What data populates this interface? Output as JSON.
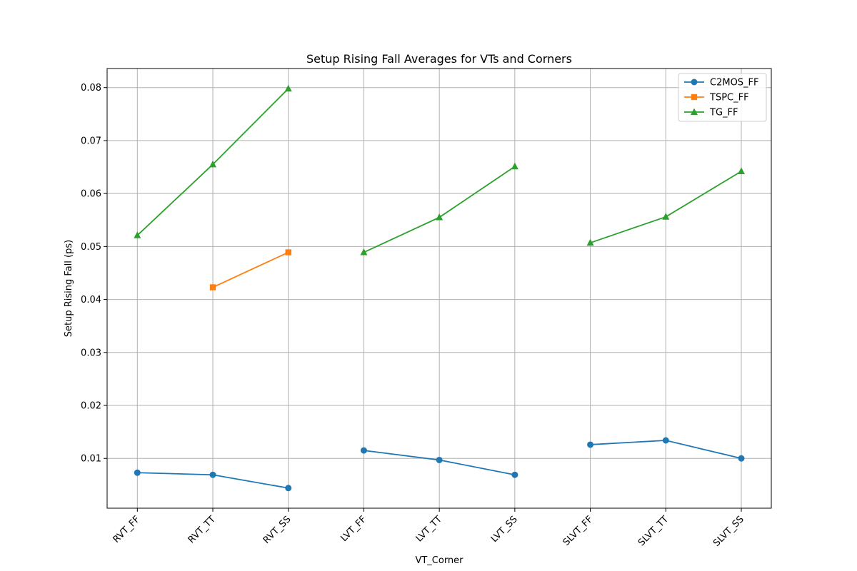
{
  "chart_data": {
    "type": "line",
    "title": "Setup Rising Fall Averages for VTs and Corners",
    "xlabel": "VT_Corner",
    "ylabel": "Setup Rising Fall (ps)",
    "categories": [
      "RVT_FF",
      "RVT_TT",
      "RVT_SS",
      "LVT_FF",
      "LVT_TT",
      "LVT_SS",
      "SLVT_FF",
      "SLVT_TT",
      "SLVT_SS"
    ],
    "ylim": [
      0.0006,
      0.0836
    ],
    "yticks": [
      "0.01",
      "0.02",
      "0.03",
      "0.04",
      "0.05",
      "0.06",
      "0.07",
      "0.08"
    ],
    "grid": true,
    "legend_position": "top-right",
    "series": [
      {
        "name": "C2MOS_FF",
        "color": "#1f77b4",
        "marker": "circle",
        "values": [
          0.0073,
          0.0069,
          0.0044,
          null,
          0.0097,
          0.0069,
          0.0126,
          0.0134,
          0.01
        ],
        "segment_values": [
          0.0073,
          0.0069,
          0.0044,
          0.0115,
          0.0097,
          0.0069,
          0.0126,
          0.0134,
          0.01
        ]
      },
      {
        "name": "TSPC_FF",
        "color": "#ff7f0e",
        "marker": "square",
        "values": [
          null,
          0.0423,
          0.0489,
          null,
          null,
          null,
          null,
          null,
          null
        ]
      },
      {
        "name": "TG_FF",
        "color": "#2ca02c",
        "marker": "triangle",
        "values": [
          0.0521,
          0.0655,
          0.0798,
          0.0489,
          0.0555,
          0.0651,
          0.0507,
          0.0556,
          0.0642
        ]
      }
    ],
    "segments": [
      [
        0,
        2
      ],
      [
        3,
        5
      ],
      [
        6,
        8
      ]
    ]
  }
}
